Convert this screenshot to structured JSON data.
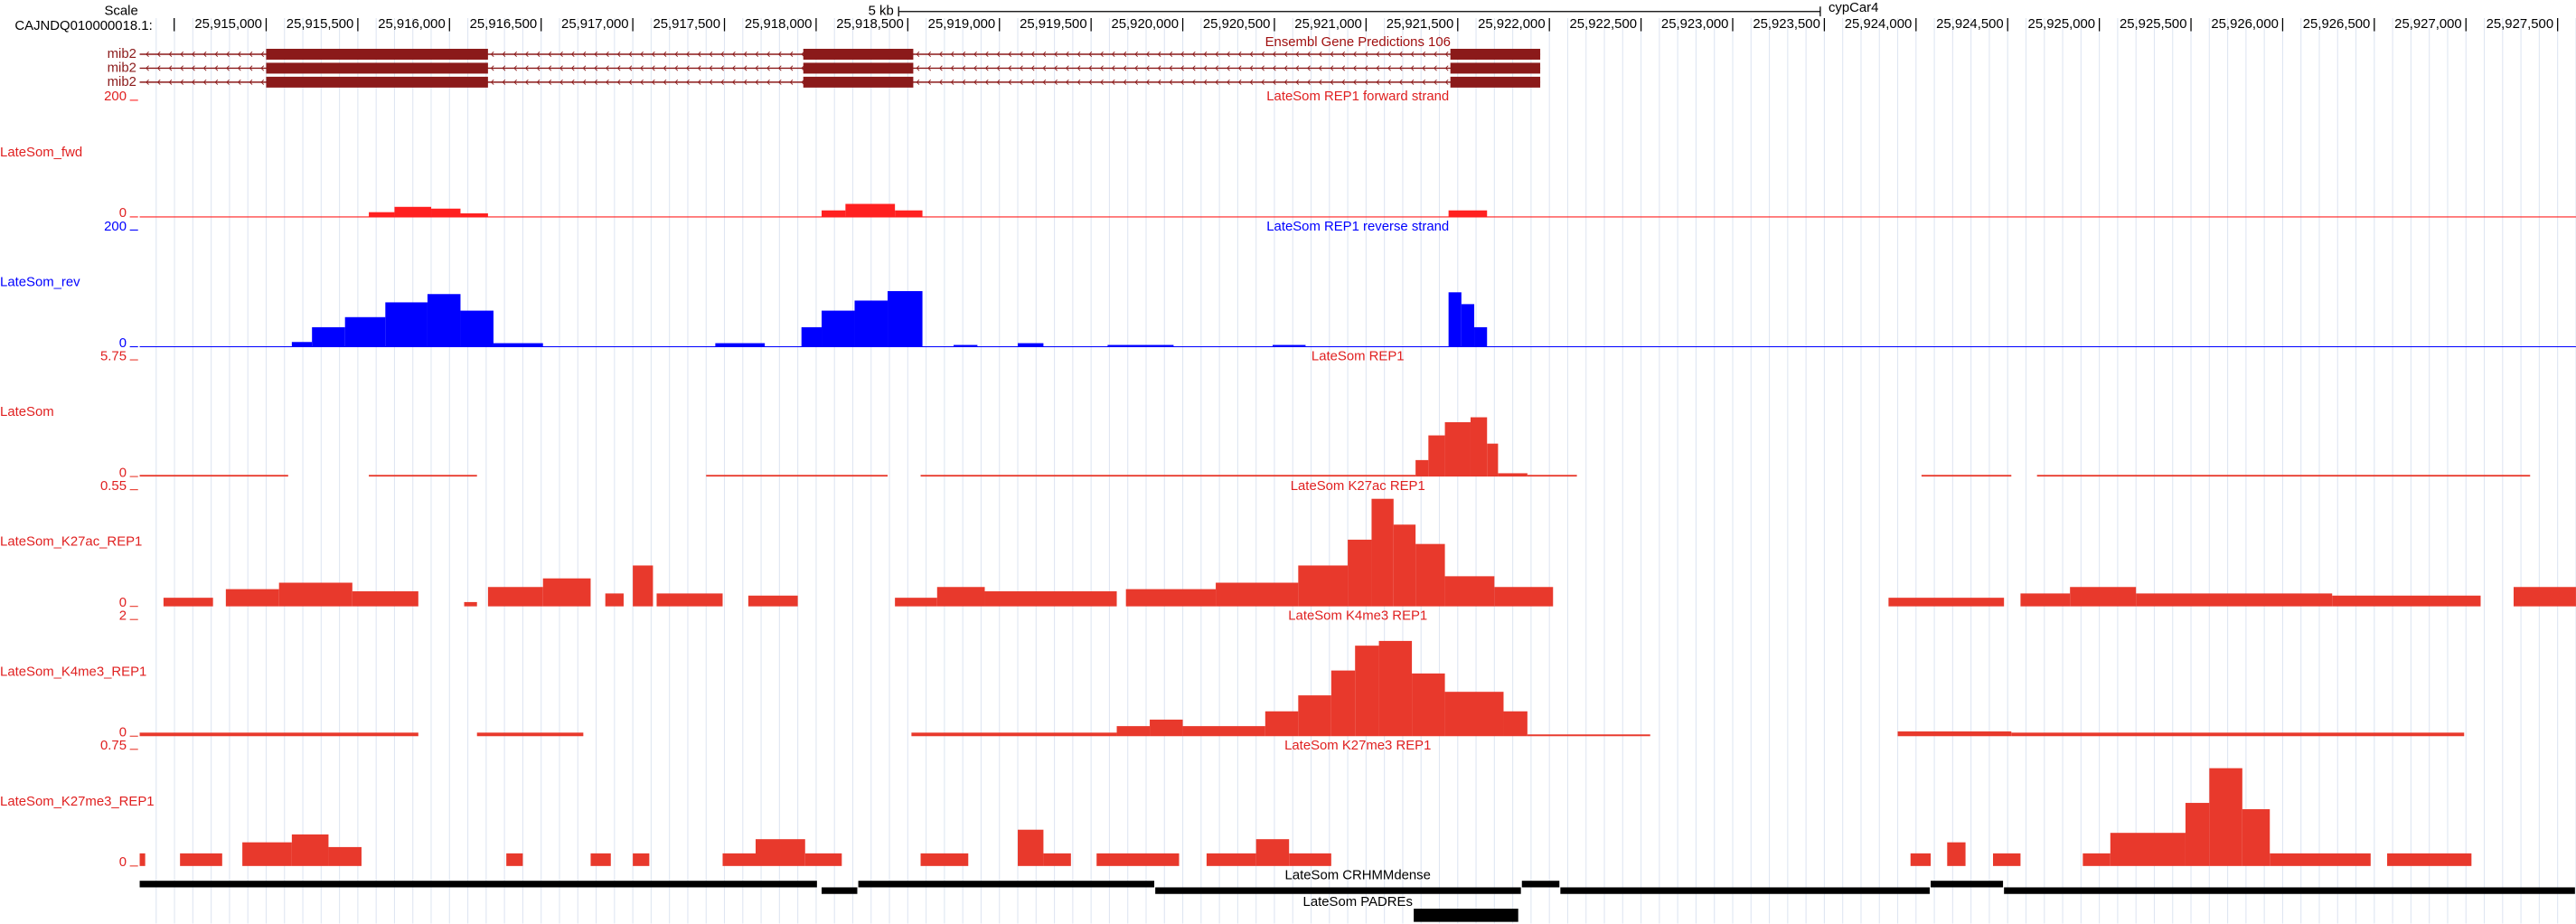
{
  "header": {
    "scale_label": "Scale",
    "scale_bar_label": "5 kb",
    "assembly": "cypCar4",
    "chrom": "CAJNDQ010000018.1:"
  },
  "ruler": {
    "xlim": [
      25914310,
      25927600
    ],
    "ticks": [
      {
        "value": 25915000,
        "label": "25,915,000"
      },
      {
        "value": 25915500,
        "label": "25,915,500"
      },
      {
        "value": 25916000,
        "label": "25,916,000"
      },
      {
        "value": 25916500,
        "label": "25,916,500"
      },
      {
        "value": 25917000,
        "label": "25,917,000"
      },
      {
        "value": 25917500,
        "label": "25,917,500"
      },
      {
        "value": 25918000,
        "label": "25,918,000"
      },
      {
        "value": 25918500,
        "label": "25,918,500"
      },
      {
        "value": 25919000,
        "label": "25,919,000"
      },
      {
        "value": 25919500,
        "label": "25,919,500"
      },
      {
        "value": 25920000,
        "label": "25,920,000"
      },
      {
        "value": 25920500,
        "label": "25,920,500"
      },
      {
        "value": 25921000,
        "label": "25,921,000"
      },
      {
        "value": 25921500,
        "label": "25,921,500"
      },
      {
        "value": 25922000,
        "label": "25,922,000"
      },
      {
        "value": 25922500,
        "label": "25,922,500"
      },
      {
        "value": 25923000,
        "label": "25,923,000"
      },
      {
        "value": 25923500,
        "label": "25,923,500"
      },
      {
        "value": 25924000,
        "label": "25,924,000"
      },
      {
        "value": 25924500,
        "label": "25,924,500"
      },
      {
        "value": 25925000,
        "label": "25,925,000"
      },
      {
        "value": 25925500,
        "label": "25,925,500"
      },
      {
        "value": 25926000,
        "label": "25,926,000"
      },
      {
        "value": 25926500,
        "label": "25,926,500"
      },
      {
        "value": 25927000,
        "label": "25,927,000"
      },
      {
        "value": 25927500,
        "label": "25,927,500"
      }
    ]
  },
  "genes": {
    "title": "Ensembl Gene Predictions 106",
    "color": "#8b1a1a",
    "transcripts": [
      {
        "name": "mib2",
        "span": [
          25914310,
          25921950
        ],
        "exons": [
          [
            25915000,
            25916210
          ],
          [
            25917930,
            25918530
          ],
          [
            25921460,
            25921950
          ]
        ]
      },
      {
        "name": "mib2",
        "span": [
          25914310,
          25921950
        ],
        "exons": [
          [
            25915000,
            25916210
          ],
          [
            25917930,
            25918530
          ],
          [
            25921460,
            25921950
          ]
        ]
      },
      {
        "name": "mib2",
        "span": [
          25914310,
          25921950
        ],
        "exons": [
          [
            25915000,
            25916210
          ],
          [
            25917930,
            25918530
          ],
          [
            25921460,
            25921950
          ]
        ]
      }
    ]
  },
  "tracks": [
    {
      "title": "LateSom REP1 forward strand",
      "label": "LateSom_fwd",
      "ylim": [
        0,
        200
      ],
      "color": "#ff2020",
      "baseline": true,
      "signal": [
        [
          25915560,
          25915700,
          8
        ],
        [
          25915700,
          25915900,
          17
        ],
        [
          25915900,
          25916060,
          14
        ],
        [
          25916060,
          25916210,
          6
        ],
        [
          25918030,
          25918160,
          11
        ],
        [
          25918160,
          25918430,
          22
        ],
        [
          25918430,
          25918580,
          11
        ],
        [
          25921450,
          25921660,
          11
        ]
      ]
    },
    {
      "title": "LateSom REP1 reverse strand",
      "label": "LateSom_rev",
      "ylim": [
        0,
        200
      ],
      "color": "#0000ff",
      "baseline": true,
      "signal": [
        [
          25915140,
          25915250,
          8
        ],
        [
          25915250,
          25915430,
          33
        ],
        [
          25915430,
          25915650,
          50
        ],
        [
          25915650,
          25915880,
          75
        ],
        [
          25915880,
          25916060,
          89
        ],
        [
          25916060,
          25916240,
          61
        ],
        [
          25916240,
          25916510,
          6
        ],
        [
          25917450,
          25917720,
          6
        ],
        [
          25917920,
          25918030,
          33
        ],
        [
          25918030,
          25918210,
          61
        ],
        [
          25918210,
          25918390,
          78
        ],
        [
          25918390,
          25918580,
          94
        ],
        [
          25918750,
          25918880,
          3
        ],
        [
          25919100,
          25919240,
          6
        ],
        [
          25919590,
          25919950,
          3
        ],
        [
          25920490,
          25920670,
          3
        ],
        [
          25921450,
          25921520,
          92
        ],
        [
          25921520,
          25921590,
          72
        ],
        [
          25921590,
          25921660,
          33
        ]
      ]
    },
    {
      "title": "LateSom REP1",
      "label": "LateSom",
      "ylim": [
        0,
        5.75
      ],
      "color": "#e8392c",
      "baseline": false,
      "signal": [
        [
          25914310,
          25915120,
          0.08
        ],
        [
          25915560,
          25916150,
          0.08
        ],
        [
          25917400,
          25918390,
          0.08
        ],
        [
          25918570,
          25921270,
          0.08
        ],
        [
          25921270,
          25921340,
          0.8
        ],
        [
          25921340,
          25921430,
          2.0
        ],
        [
          25921430,
          25921570,
          2.64
        ],
        [
          25921570,
          25921660,
          2.88
        ],
        [
          25921660,
          25921720,
          1.6
        ],
        [
          25921720,
          25921880,
          0.16
        ],
        [
          25921880,
          25922150,
          0.08
        ],
        [
          25924030,
          25924520,
          0.08
        ],
        [
          25924660,
          25927350,
          0.08
        ]
      ]
    },
    {
      "title": "LateSom K27ac REP1",
      "label": "LateSom_K27ac_REP1",
      "ylim": [
        0,
        0.55
      ],
      "color": "#e8392c",
      "baseline": false,
      "signal": [
        [
          25914440,
          25914710,
          0.04
        ],
        [
          25914780,
          25915070,
          0.08
        ],
        [
          25915070,
          25915470,
          0.11
        ],
        [
          25915470,
          25915830,
          0.07
        ],
        [
          25916080,
          25916150,
          0.02
        ],
        [
          25916210,
          25916510,
          0.09
        ],
        [
          25916510,
          25916770,
          0.13
        ],
        [
          25916850,
          25916950,
          0.06
        ],
        [
          25917000,
          25917110,
          0.19
        ],
        [
          25917130,
          25917490,
          0.06
        ],
        [
          25917630,
          25917900,
          0.05
        ],
        [
          25918430,
          25918660,
          0.04
        ],
        [
          25918660,
          25918920,
          0.09
        ],
        [
          25918920,
          25919640,
          0.07
        ],
        [
          25919690,
          25920180,
          0.08
        ],
        [
          25920180,
          25920630,
          0.11
        ],
        [
          25920630,
          25920900,
          0.19
        ],
        [
          25920900,
          25921030,
          0.31
        ],
        [
          25921030,
          25921150,
          0.5
        ],
        [
          25921150,
          25921270,
          0.38
        ],
        [
          25921270,
          25921430,
          0.29
        ],
        [
          25921430,
          25921700,
          0.14
        ],
        [
          25921700,
          25922020,
          0.09
        ],
        [
          25923850,
          25924480,
          0.04
        ],
        [
          25924570,
          25924840,
          0.06
        ],
        [
          25924840,
          25925200,
          0.09
        ],
        [
          25925200,
          25926270,
          0.06
        ],
        [
          25926270,
          25927080,
          0.05
        ],
        [
          25927260,
          25927600,
          0.09
        ]
      ]
    },
    {
      "title": "LateSom K4me3 REP1",
      "label": "LateSom_K4me3_REP1",
      "ylim": [
        0,
        2
      ],
      "color": "#e8392c",
      "baseline": false,
      "signal": [
        [
          25914310,
          25915830,
          0.06
        ],
        [
          25916150,
          25916730,
          0.06
        ],
        [
          25918520,
          25919640,
          0.06
        ],
        [
          25919640,
          25919820,
          0.17
        ],
        [
          25919820,
          25920000,
          0.28
        ],
        [
          25920000,
          25920450,
          0.17
        ],
        [
          25920450,
          25920630,
          0.42
        ],
        [
          25920630,
          25920810,
          0.69
        ],
        [
          25920810,
          25920940,
          1.11
        ],
        [
          25920940,
          25921070,
          1.53
        ],
        [
          25921070,
          25921250,
          1.61
        ],
        [
          25921250,
          25921430,
          1.06
        ],
        [
          25921430,
          25921750,
          0.75
        ],
        [
          25921750,
          25921880,
          0.42
        ],
        [
          25921880,
          25922550,
          0.03
        ],
        [
          25923900,
          25924520,
          0.08
        ],
        [
          25924520,
          25926990,
          0.06
        ]
      ]
    },
    {
      "title": "LateSom K27me3 REP1",
      "label": "LateSom_K27me3_REP1",
      "ylim": [
        0,
        0.75
      ],
      "color": "#e8392c",
      "baseline": false,
      "signal": [
        [
          25914310,
          25914340,
          0.08
        ],
        [
          25914530,
          25914760,
          0.08
        ],
        [
          25914870,
          25915140,
          0.15
        ],
        [
          25915140,
          25915340,
          0.2
        ],
        [
          25915340,
          25915520,
          0.12
        ],
        [
          25916310,
          25916400,
          0.08
        ],
        [
          25916770,
          25916880,
          0.08
        ],
        [
          25917000,
          25917090,
          0.08
        ],
        [
          25917490,
          25917670,
          0.08
        ],
        [
          25917670,
          25917940,
          0.17
        ],
        [
          25917940,
          25918140,
          0.08
        ],
        [
          25918570,
          25918830,
          0.08
        ],
        [
          25919100,
          25919240,
          0.23
        ],
        [
          25919240,
          25919390,
          0.08
        ],
        [
          25919530,
          25919980,
          0.08
        ],
        [
          25920130,
          25920400,
          0.08
        ],
        [
          25920400,
          25920580,
          0.17
        ],
        [
          25920580,
          25920810,
          0.08
        ],
        [
          25923970,
          25924080,
          0.08
        ],
        [
          25924170,
          25924270,
          0.15
        ],
        [
          25924420,
          25924570,
          0.08
        ],
        [
          25924910,
          25925060,
          0.08
        ],
        [
          25925060,
          25925470,
          0.21
        ],
        [
          25925470,
          25925600,
          0.4
        ],
        [
          25925600,
          25925780,
          0.62
        ],
        [
          25925780,
          25925930,
          0.36
        ],
        [
          25925930,
          25926480,
          0.08
        ],
        [
          25926570,
          25927030,
          0.08
        ]
      ]
    }
  ],
  "crhmm": {
    "title": "LateSom CRHMMdense",
    "segments": [
      [
        25914310,
        25918010
      ],
      [
        25918030,
        25918230
      ],
      [
        25918230,
        25919850
      ],
      [
        25919850,
        25921850
      ],
      [
        25921850,
        25922060
      ],
      [
        25922060,
        25924080
      ],
      [
        25924080,
        25924480
      ],
      [
        25924480,
        25927600
      ]
    ]
  },
  "padres": {
    "title": "LateSom PADREs",
    "segments": [
      [
        25921260,
        25921830
      ]
    ]
  }
}
